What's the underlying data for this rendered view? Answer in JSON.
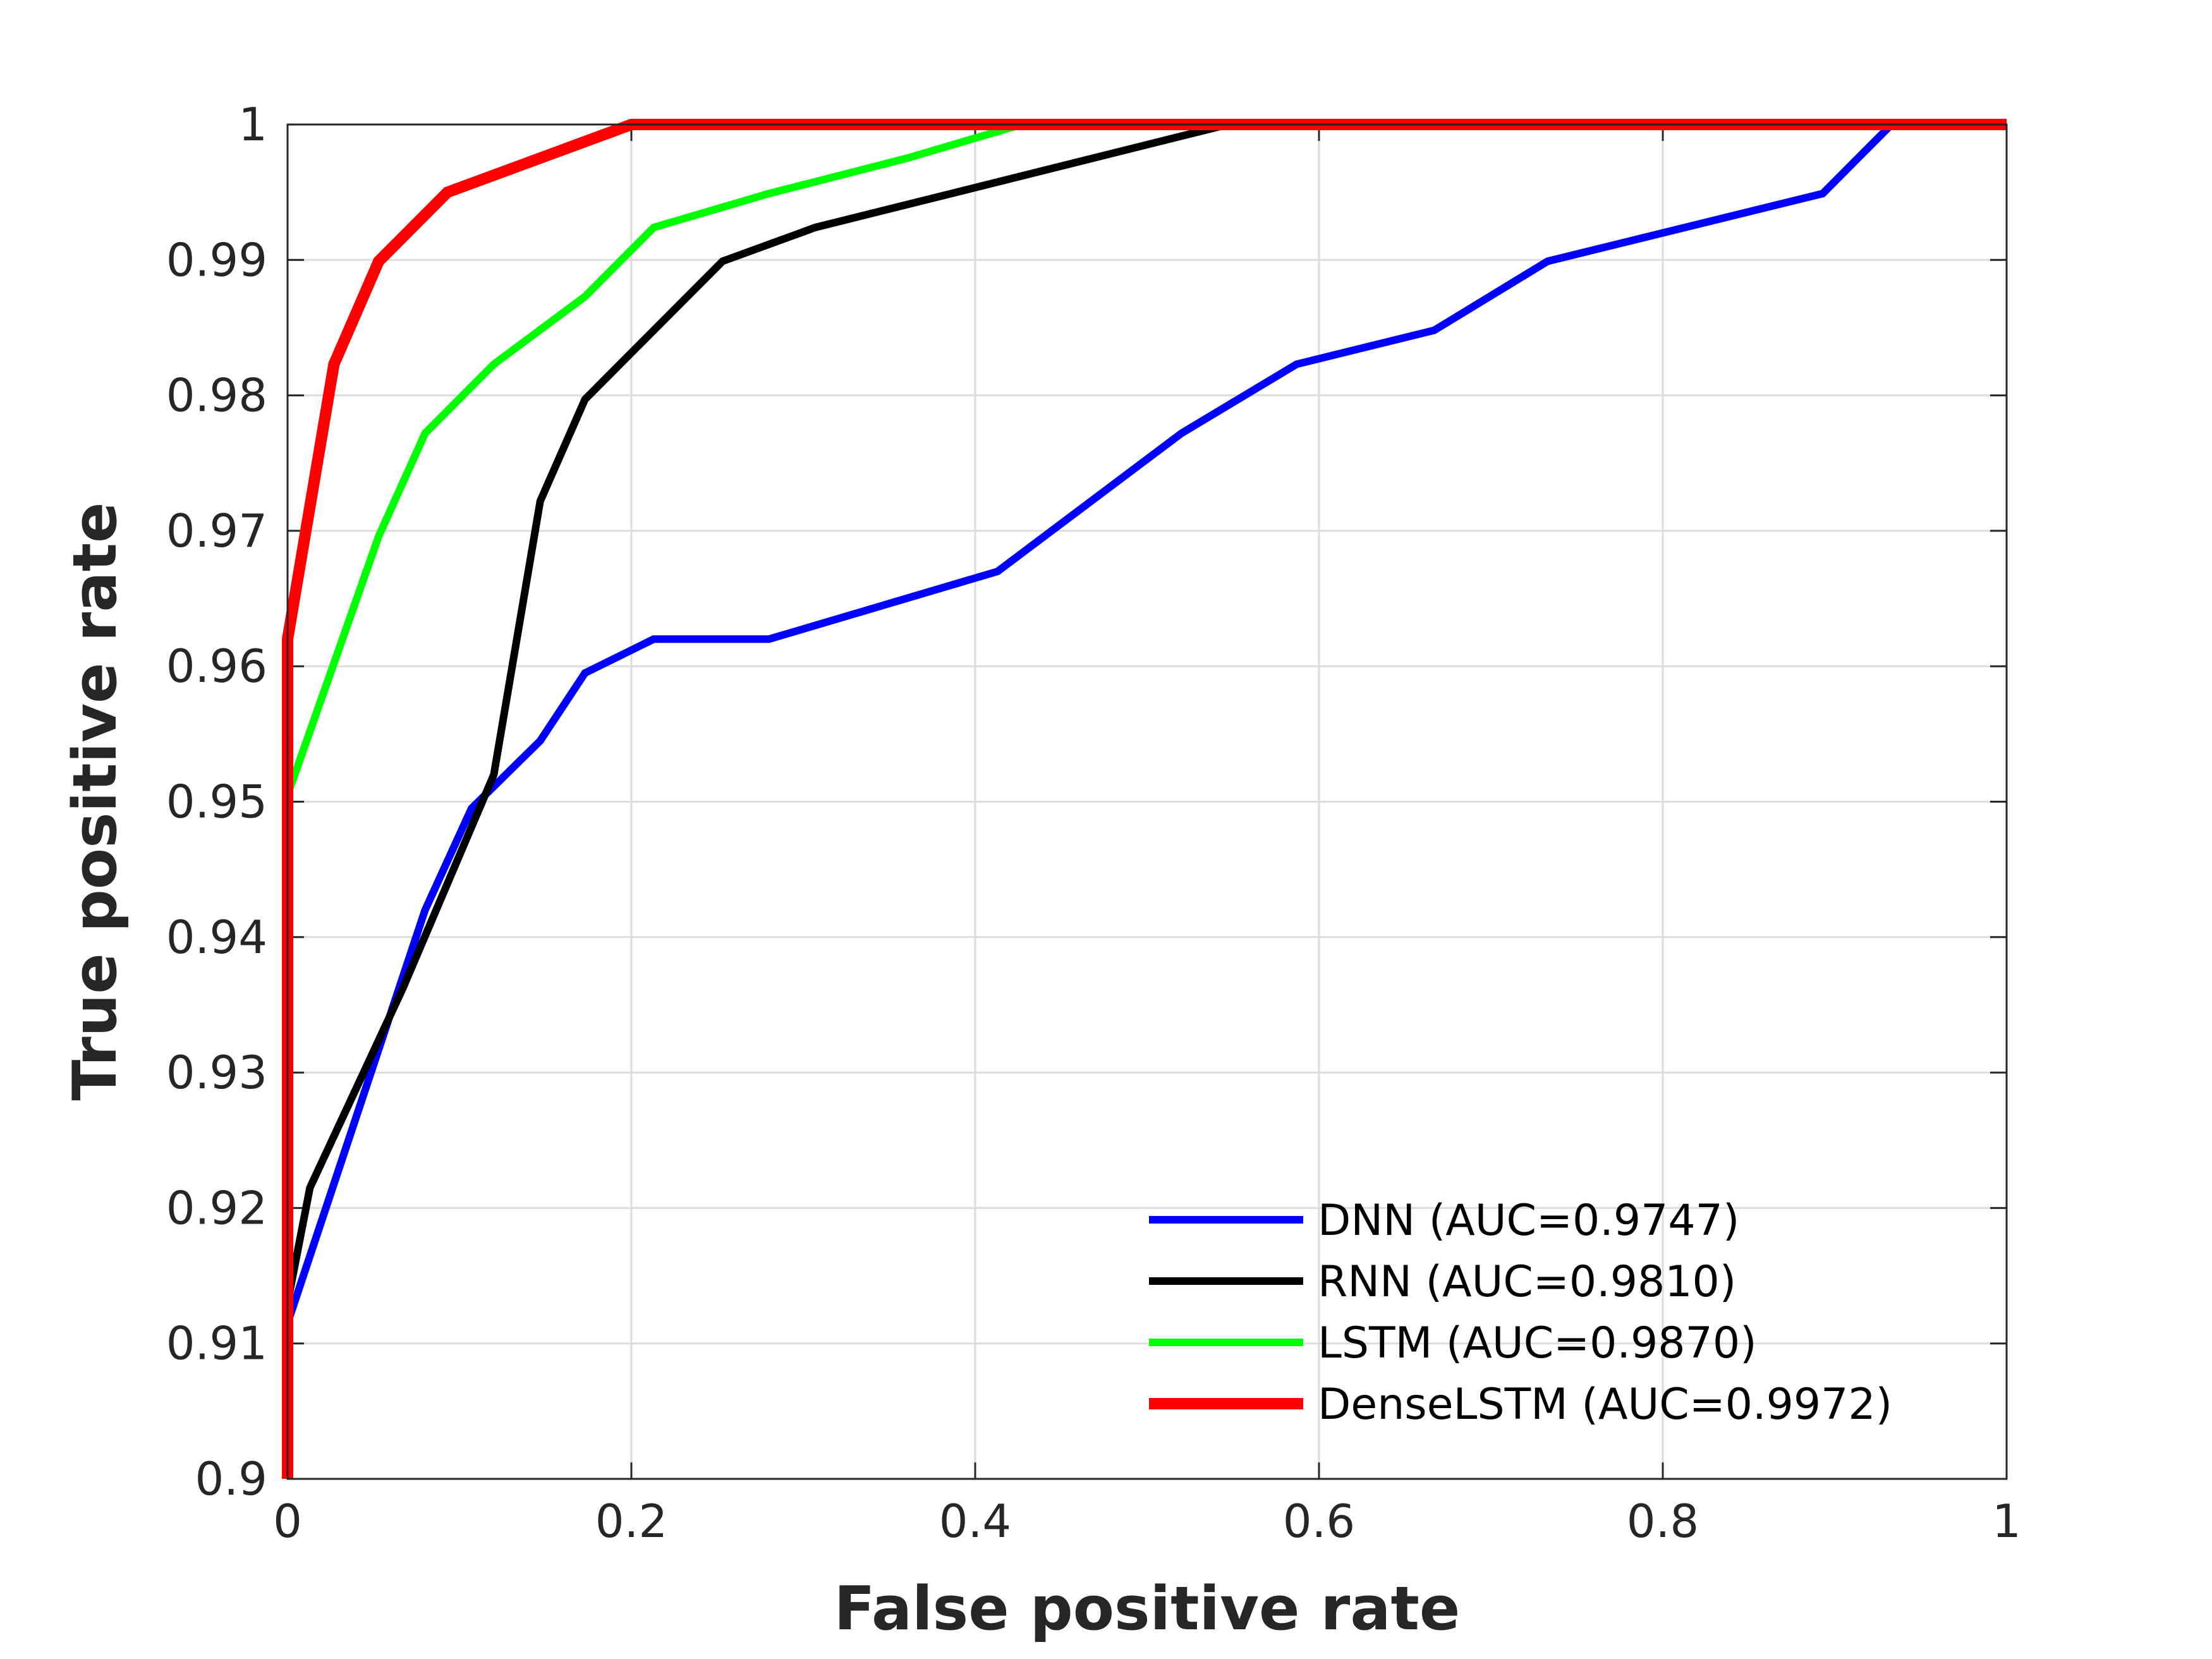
{
  "chart_data": {
    "type": "line",
    "title": "",
    "xlabel": "False positive rate",
    "ylabel": "True positive rate",
    "xlim": [
      0,
      1
    ],
    "ylim": [
      0.9,
      1
    ],
    "grid": true,
    "legend_position": "bottom-right",
    "xticks": [
      0,
      0.2,
      0.4,
      0.6,
      0.8,
      1
    ],
    "xtick_labels": [
      "0",
      "0.2",
      "0.4",
      "0.6",
      "0.8",
      "1"
    ],
    "yticks": [
      0.9,
      0.91,
      0.92,
      0.93,
      0.94,
      0.95,
      0.96,
      0.97,
      0.98,
      0.99,
      1
    ],
    "ytick_labels": [
      "0.9",
      "0.91",
      "0.92",
      "0.93",
      "0.94",
      "0.95",
      "0.96",
      "0.97",
      "0.98",
      "0.99",
      "1"
    ],
    "series": [
      {
        "name": "DNN (AUC=0.9747)",
        "color": "#0000ff",
        "x": [
          0,
          0.08,
          0.107,
          0.147,
          0.173,
          0.213,
          0.28,
          0.413,
          0.52,
          0.587,
          0.667,
          0.733,
          0.893,
          0.933,
          1
        ],
        "y": [
          0.9115,
          0.942,
          0.9495,
          0.9545,
          0.9595,
          0.962,
          0.962,
          0.967,
          0.9772,
          0.9823,
          0.9848,
          0.9899,
          0.9949,
          1.0,
          1.0
        ]
      },
      {
        "name": "RNN (AUC=0.9810)",
        "color": "#000000",
        "x": [
          0,
          0.013,
          0.067,
          0.12,
          0.147,
          0.173,
          0.253,
          0.307,
          0.547,
          1
        ],
        "y": [
          0.913,
          0.9215,
          0.9362,
          0.952,
          0.9722,
          0.9797,
          0.9899,
          0.9924,
          1.0,
          1.0
        ]
      },
      {
        "name": "LSTM (AUC=0.9870)",
        "color": "#00ff00",
        "x": [
          0,
          0.053,
          0.08,
          0.12,
          0.173,
          0.213,
          0.28,
          0.36,
          0.427,
          1
        ],
        "y": [
          0.9505,
          0.9696,
          0.9772,
          0.9823,
          0.9873,
          0.9924,
          0.9949,
          0.9975,
          1.0,
          1.0
        ]
      },
      {
        "name": "DenseLSTM (AUC=0.9972)",
        "color": "#ff0000",
        "x": [
          0,
          0,
          0.027,
          0.053,
          0.093,
          0.2,
          1
        ],
        "y": [
          0.9,
          0.962,
          0.9823,
          0.9899,
          0.995,
          1.0,
          1.0
        ]
      }
    ]
  }
}
